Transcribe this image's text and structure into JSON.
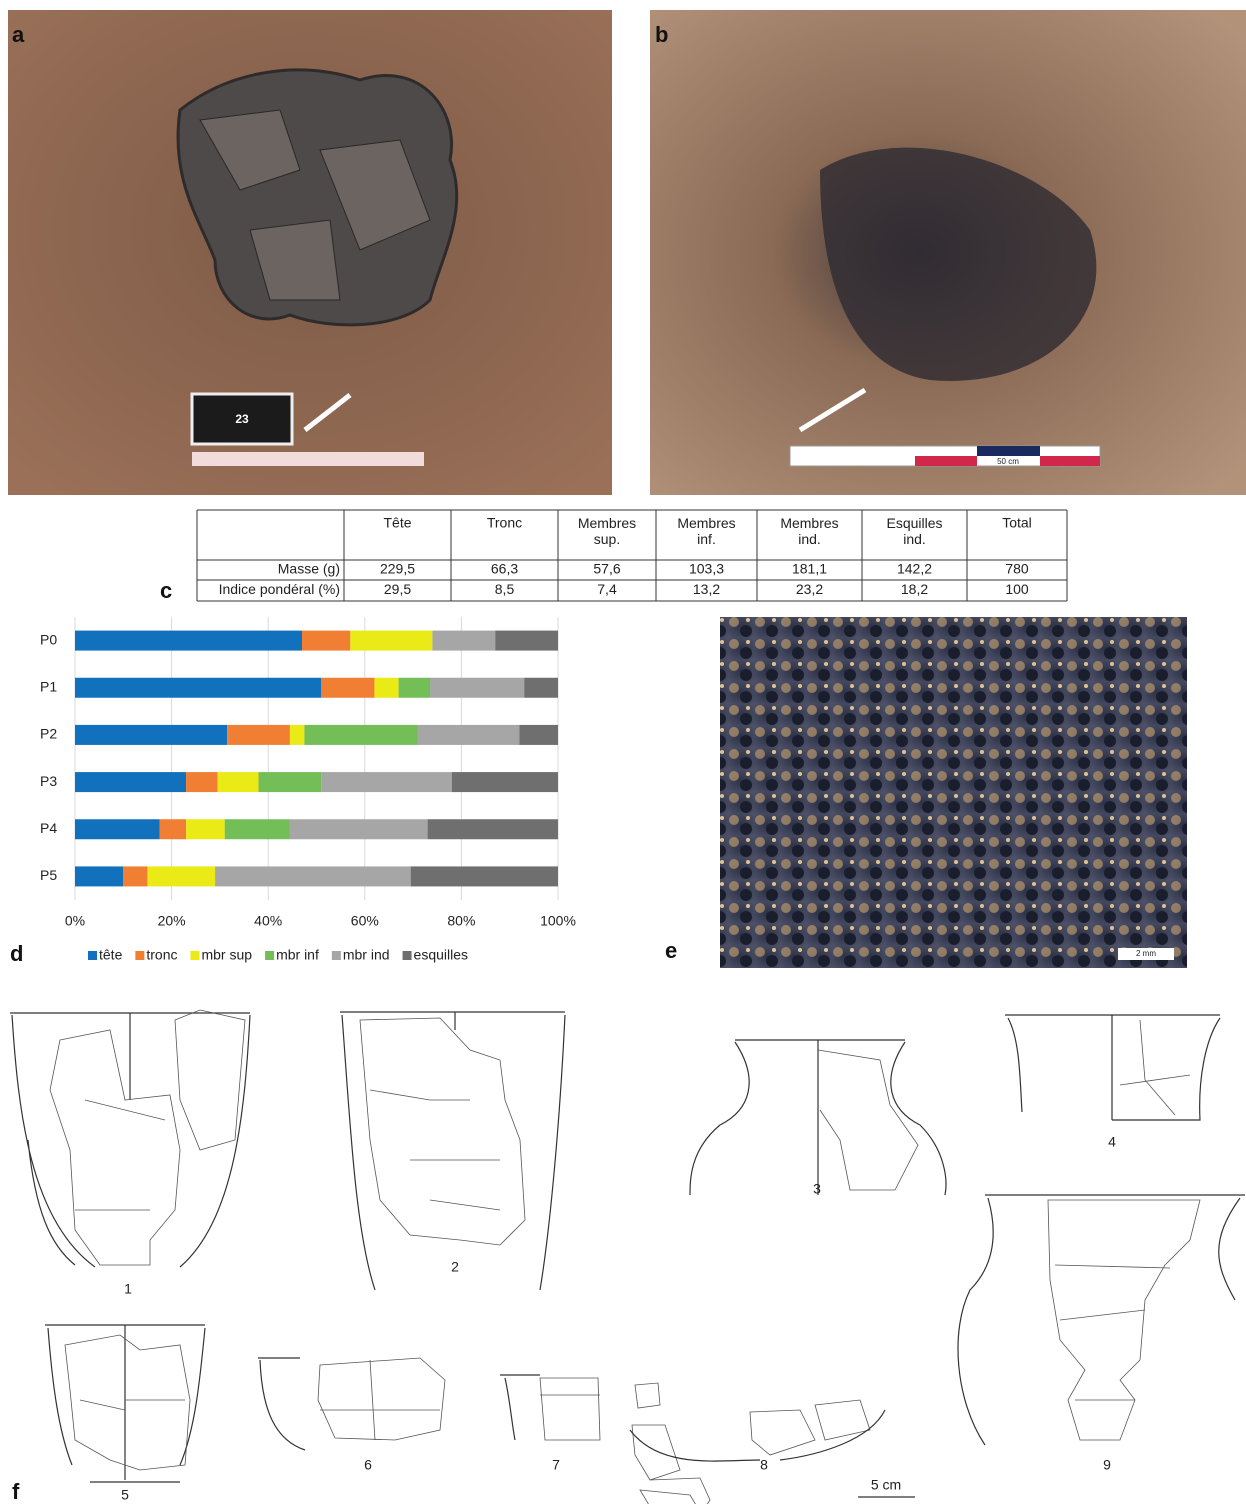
{
  "panel_labels": [
    "a",
    "b",
    "c",
    "d",
    "e",
    "f"
  ],
  "photos": {
    "card": "23",
    "scale_b": "50 cm",
    "scale_e": "2 mm"
  },
  "table": {
    "columns": [
      "Tête",
      "Tronc",
      "Membres sup.",
      "Membres inf.",
      "Membres ind.",
      "Esquilles ind.",
      "Total"
    ],
    "rows": [
      {
        "label": "Masse (g)",
        "cells": [
          "229,5",
          "66,3",
          "57,6",
          "103,3",
          "181,1",
          "142,2",
          "780"
        ]
      },
      {
        "label": "Indice pondéral (%)",
        "cells": [
          "29,5",
          "8,5",
          "7,4",
          "13,2",
          "23,2",
          "18,2",
          "100"
        ]
      }
    ]
  },
  "chart_data": {
    "type": "bar",
    "orientation": "horizontal",
    "stacked": true,
    "categories": [
      "P0",
      "P1",
      "P2",
      "P3",
      "P4",
      "P5"
    ],
    "series": [
      {
        "name": "tête",
        "color": "#1271bd",
        "values": [
          47,
          51,
          31.5,
          23,
          17.5,
          10
        ]
      },
      {
        "name": "tronc",
        "color": "#f07f33",
        "values": [
          10,
          11,
          13,
          6.5,
          5.5,
          5
        ]
      },
      {
        "name": "mbr sup",
        "color": "#eaea16",
        "values": [
          17,
          5,
          3,
          8.5,
          8,
          14
        ]
      },
      {
        "name": "mbr inf",
        "color": "#74be58",
        "values": [
          0,
          6.5,
          23.5,
          13,
          13.5,
          0
        ]
      },
      {
        "name": "mbr ind",
        "color": "#a6a6a6",
        "values": [
          13,
          19.5,
          21,
          27,
          28.5,
          40.5
        ]
      },
      {
        "name": "esquilles",
        "color": "#6f6f6f",
        "values": [
          13,
          7,
          8,
          22,
          27,
          30.5
        ]
      }
    ],
    "xlim": [
      0,
      100
    ],
    "xticks": [
      {
        "value": 0,
        "label": "0%"
      },
      {
        "value": 20,
        "label": "20%"
      },
      {
        "value": 40,
        "label": "40%"
      },
      {
        "value": 60,
        "label": "60%"
      },
      {
        "value": 80,
        "label": "80%"
      },
      {
        "value": 100,
        "label": "100%"
      }
    ],
    "grid": true,
    "legend": "bottom"
  },
  "drawings": {
    "numbers": [
      "1",
      "2",
      "3",
      "4",
      "5",
      "6",
      "7",
      "8",
      "9"
    ],
    "scale": "5 cm"
  }
}
